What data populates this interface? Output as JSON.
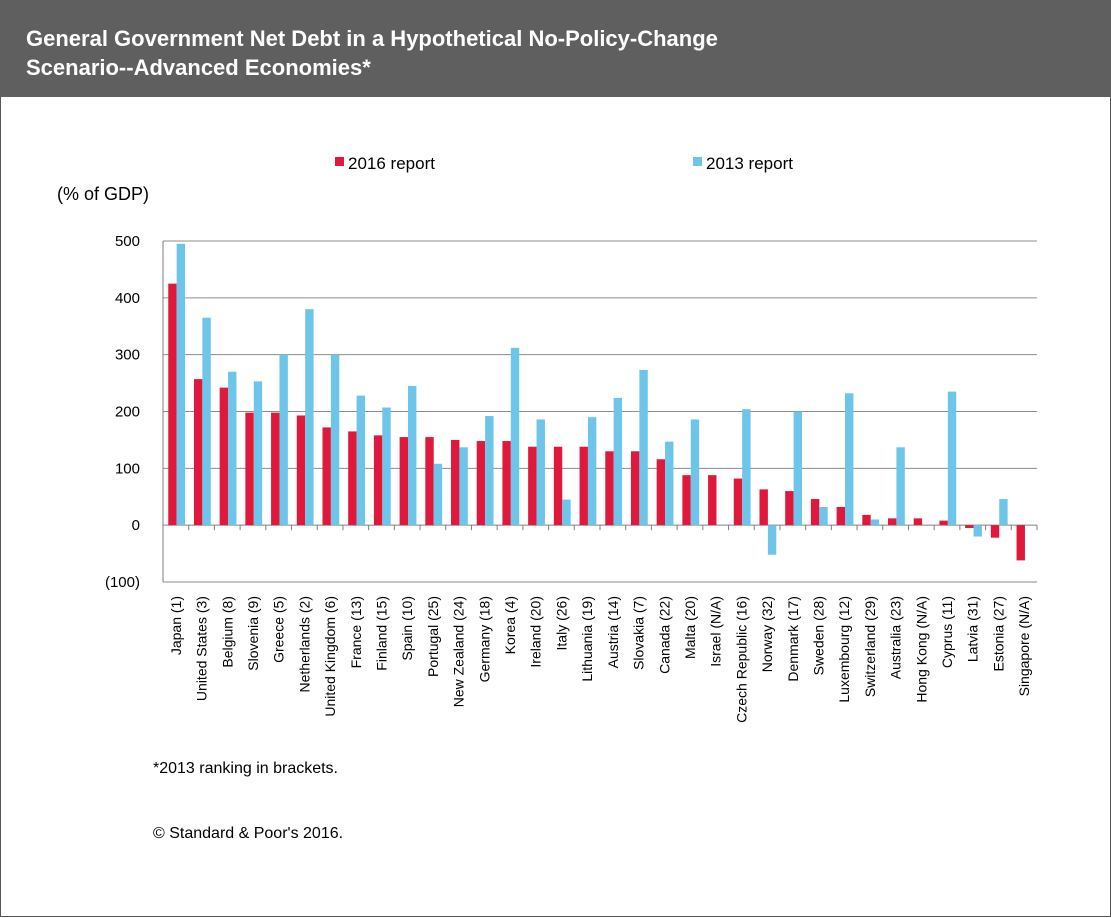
{
  "header": {
    "title": "General Government Net Debt in a Hypothetical No-Policy-Change\nScenario--Advanced Economies*"
  },
  "footnotes": {
    "ranking_note": "*2013 ranking in brackets.",
    "copyright": "© Standard & Poor's 2016."
  },
  "chart_data": {
    "type": "bar",
    "title": "General Government Net Debt in a Hypothetical No-Policy-Change Scenario--Advanced Economies*",
    "ylabel": "(% of GDP)",
    "xlabel": "",
    "ylim": [
      -100,
      500
    ],
    "yticks": [
      500,
      400,
      300,
      200,
      100,
      0,
      -100
    ],
    "ytick_labels": [
      "500",
      "400",
      "300",
      "200",
      "100",
      "0",
      "(100)"
    ],
    "grid": true,
    "legend_position": "top",
    "categories": [
      "Japan (1)",
      "United States (3)",
      "Belgium (8)",
      "Slovenia (9)",
      "Greece (5)",
      "Netherlands (2)",
      "United Kingdom (6)",
      "France (13)",
      "Finland (15)",
      "Spain (10)",
      "Portugal (25)",
      "New Zealand (24)",
      "Germany (18)",
      "Korea (4)",
      "Ireland (20)",
      "Italy (26)",
      "Lithuania (19)",
      "Austria (14)",
      "Slovakia (7)",
      "Canada (22)",
      "Malta (20)",
      "Israel (N/A)",
      "Czech Republic (16)",
      "Norway (32)",
      "Denmark (17)",
      "Sweden (28)",
      "Luxembourg (12)",
      "Switzerland (29)",
      "Australia (23)",
      "Hong Kong (N/A)",
      "Cyprus (11)",
      "Latvia (31)",
      "Estonia (27)",
      "Singapore (N/A)"
    ],
    "series": [
      {
        "name": "2016 report",
        "color": "#e0193c",
        "values": [
          425,
          257,
          242,
          198,
          198,
          193,
          172,
          165,
          158,
          155,
          155,
          150,
          148,
          148,
          138,
          138,
          138,
          130,
          130,
          116,
          88,
          88,
          82,
          63,
          60,
          46,
          32,
          18,
          12,
          12,
          8,
          -5,
          -22,
          -62
        ]
      },
      {
        "name": "2013 report",
        "color": "#6ec5ea",
        "values": [
          495,
          365,
          270,
          253,
          300,
          380,
          300,
          228,
          207,
          245,
          108,
          137,
          192,
          312,
          186,
          45,
          190,
          224,
          273,
          147,
          186,
          null,
          204,
          -52,
          200,
          32,
          232,
          10,
          137,
          null,
          235,
          -20,
          46,
          null
        ]
      }
    ]
  }
}
